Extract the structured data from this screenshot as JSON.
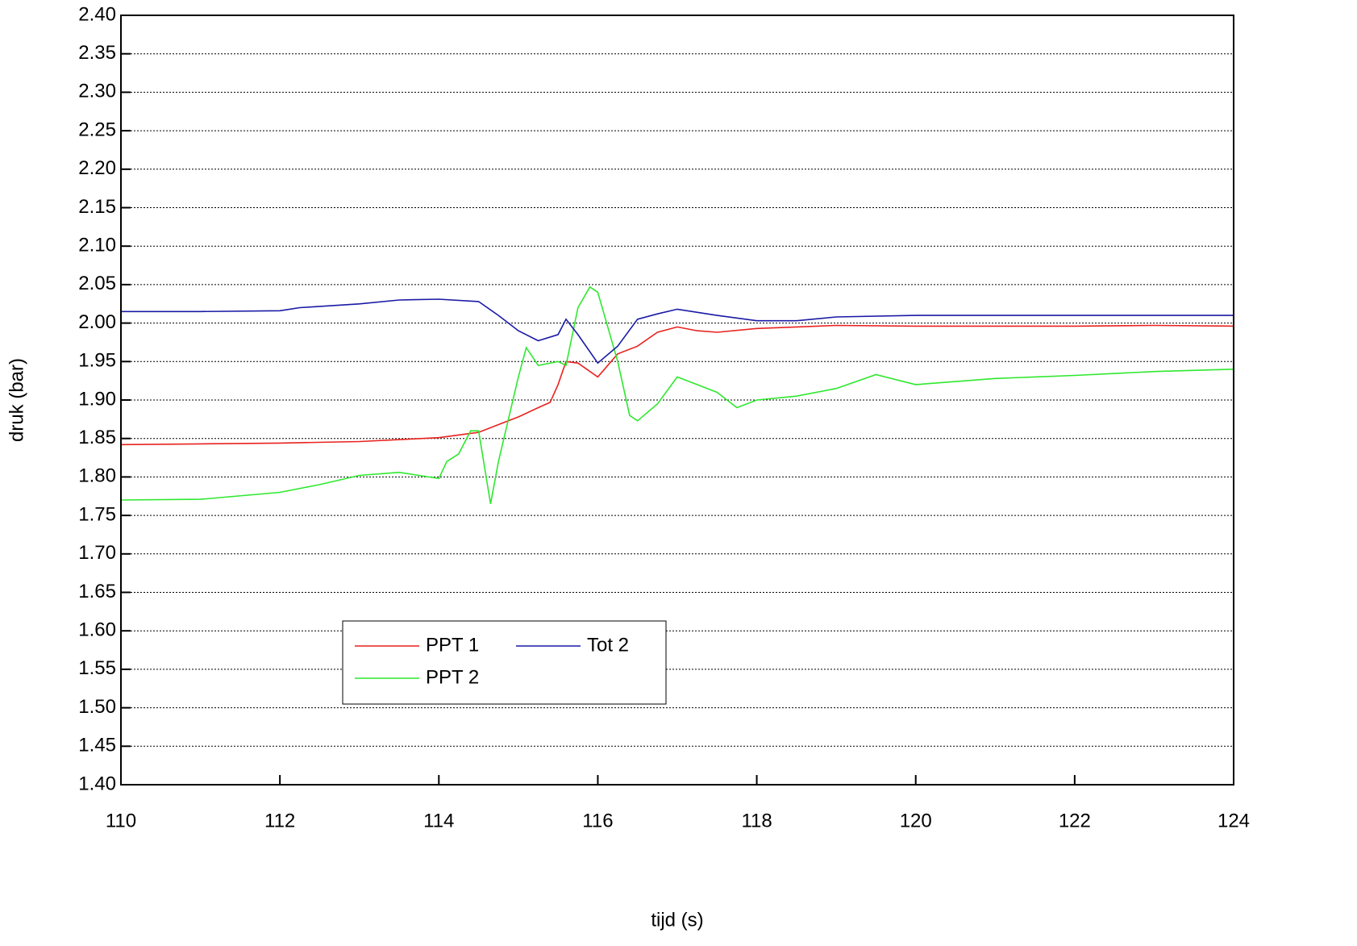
{
  "chart_data": {
    "type": "line",
    "xlabel": "tijd (s)",
    "ylabel": "druk (bar)",
    "xlim": [
      110,
      124
    ],
    "xticks": [
      110,
      112,
      114,
      116,
      118,
      120,
      122,
      124
    ],
    "ylim": [
      1.4,
      2.4
    ],
    "yticks": [
      {
        "value": 1.4,
        "label": "1.40"
      },
      1.45,
      {
        "value": 1.5,
        "label": "1.50"
      },
      1.55,
      {
        "value": 1.6,
        "label": "1.60"
      },
      1.65,
      {
        "value": 1.7,
        "label": "1.70"
      },
      1.75,
      {
        "value": 1.8,
        "label": "1.80"
      },
      1.85,
      {
        "value": 1.9,
        "label": "1.90"
      },
      1.95,
      {
        "value": 2.0,
        "label": "2.00"
      },
      2.05,
      {
        "value": 2.1,
        "label": "2.10"
      },
      2.15,
      {
        "value": 2.2,
        "label": "2.20"
      },
      2.25,
      {
        "value": 2.3,
        "label": "2.30"
      },
      2.35,
      {
        "value": 2.4,
        "label": "2.40"
      }
    ],
    "grid": true,
    "series": [
      {
        "name": "PPT 1",
        "color": "#e8221e",
        "x": [
          110,
          111,
          112,
          113,
          114,
          114.5,
          114.75,
          115,
          115.25,
          115.4,
          115.5,
          115.6,
          115.75,
          116,
          116.25,
          116.5,
          116.75,
          117,
          117.25,
          117.5,
          118,
          118.5,
          119,
          120,
          121,
          122,
          123,
          124
        ],
        "values": [
          1.842,
          1.843,
          1.844,
          1.846,
          1.851,
          1.858,
          1.868,
          1.878,
          1.89,
          1.897,
          1.92,
          1.95,
          1.948,
          1.93,
          1.96,
          1.97,
          1.988,
          1.995,
          1.99,
          1.988,
          1.993,
          1.995,
          1.997,
          1.996,
          1.996,
          1.996,
          1.997,
          1.996
        ]
      },
      {
        "name": "PPT 2",
        "color": "#2ee82e",
        "x": [
          110,
          111,
          112,
          112.5,
          113,
          113.5,
          113.75,
          114,
          114.1,
          114.25,
          114.4,
          114.5,
          114.65,
          114.75,
          115,
          115.1,
          115.25,
          115.5,
          115.6,
          115.75,
          115.9,
          116,
          116.25,
          116.4,
          116.5,
          116.75,
          117,
          117.25,
          117.5,
          117.75,
          118,
          118.5,
          119,
          119.5,
          120,
          121,
          122,
          123,
          124
        ],
        "values": [
          1.77,
          1.771,
          1.78,
          1.79,
          1.802,
          1.806,
          1.802,
          1.798,
          1.82,
          1.83,
          1.86,
          1.86,
          1.765,
          1.82,
          1.93,
          1.968,
          1.945,
          1.95,
          1.945,
          2.02,
          2.047,
          2.04,
          1.95,
          1.88,
          1.873,
          1.895,
          1.93,
          1.92,
          1.91,
          1.89,
          1.9,
          1.905,
          1.915,
          1.933,
          1.92,
          1.928,
          1.932,
          1.937,
          1.94
        ]
      },
      {
        "name": "Tot 2",
        "color": "#1a1aa6",
        "x": [
          110,
          111,
          112,
          112.25,
          113,
          113.5,
          114,
          114.5,
          114.75,
          115,
          115.25,
          115.5,
          115.6,
          115.75,
          116,
          116.25,
          116.5,
          116.75,
          117,
          117.5,
          118,
          118.5,
          119,
          120,
          121,
          122,
          123,
          124
        ],
        "values": [
          2.015,
          2.015,
          2.016,
          2.02,
          2.025,
          2.03,
          2.031,
          2.028,
          2.01,
          1.99,
          1.977,
          1.985,
          2.005,
          1.985,
          1.948,
          1.97,
          2.005,
          2.012,
          2.018,
          2.01,
          2.003,
          2.003,
          2.008,
          2.01,
          2.01,
          2.01,
          2.01,
          2.01
        ]
      }
    ]
  }
}
